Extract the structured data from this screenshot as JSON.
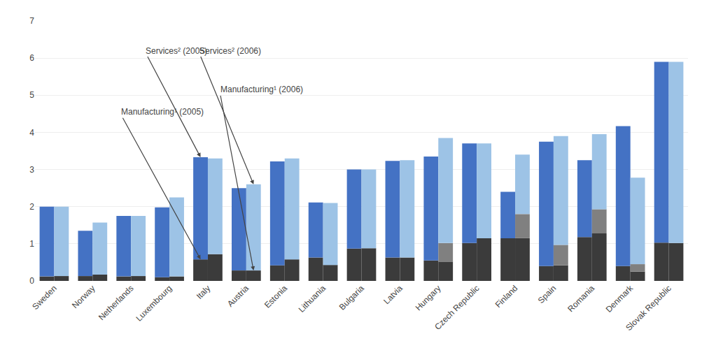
{
  "chart_data": {
    "type": "bar",
    "categories": [
      "Sweden",
      "Norway",
      "Netherlands",
      "Luxembourg",
      "Italy",
      "Austria",
      "Estonia",
      "Lithuania",
      "Bulgaria",
      "Latvia",
      "Hungary",
      "Czech Republic",
      "Finland",
      "Spain",
      "Romania",
      "Denmark",
      "Slovak Republic"
    ],
    "stacked": true,
    "series": [
      [
        {
          "color": "#3B3B3B",
          "values": [
            0.12,
            0.13,
            0.12,
            0.1,
            0.58,
            0.28,
            0.42,
            0.63,
            0.87,
            0.63,
            0.55,
            1.02,
            1.15,
            0.4,
            1.18,
            0.4,
            1.03
          ]
        },
        {
          "color": "#4472C4",
          "values": [
            1.88,
            1.22,
            1.63,
            1.88,
            2.75,
            2.22,
            2.8,
            1.48,
            2.13,
            2.6,
            2.8,
            2.68,
            1.25,
            3.35,
            2.07,
            3.77,
            4.87
          ]
        }
      ],
      [
        {
          "color": "#3B3B3B",
          "values": [
            0.13,
            0.17,
            0.13,
            0.12,
            0.72,
            0.28,
            0.58,
            0.43,
            0.88,
            0.63,
            0.52,
            1.15,
            1.15,
            0.42,
            1.28,
            0.25,
            1.02
          ]
        },
        {
          "color": "#808080",
          "values": [
            0.0,
            0.0,
            0.0,
            0.0,
            0.0,
            0.0,
            0.0,
            0.0,
            0.0,
            0.0,
            0.5,
            0.0,
            0.65,
            0.55,
            0.65,
            0.2,
            0.0
          ]
        },
        {
          "color": "#9DC3E6",
          "values": [
            1.87,
            1.4,
            1.62,
            2.13,
            2.58,
            2.32,
            2.72,
            1.67,
            2.12,
            2.62,
            2.83,
            2.55,
            1.6,
            2.93,
            2.02,
            2.33,
            4.88
          ]
        }
      ]
    ],
    "annotations": [
      "Manufacturing¹ (2005)",
      "Services² (2005)",
      "Services² (2006)",
      "Manufacturing¹ (2006)"
    ],
    "ylim": [
      0,
      7
    ],
    "yticks": [
      0,
      1,
      2,
      3,
      4,
      5,
      6,
      7
    ],
    "grid": true
  }
}
